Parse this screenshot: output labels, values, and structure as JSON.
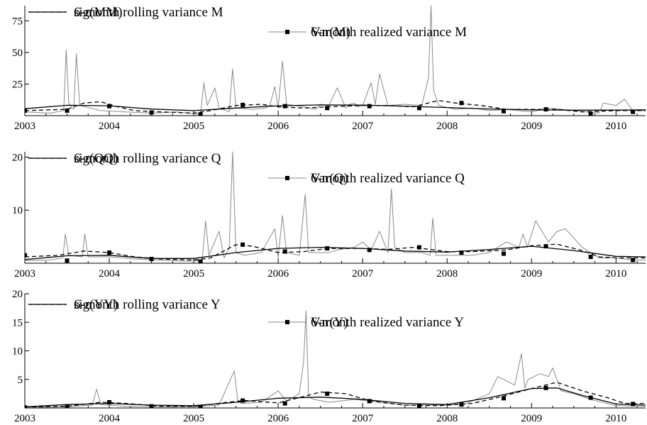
{
  "chart_data": [
    {
      "type": "line",
      "panel": "M",
      "xlim": [
        2003.0,
        2010.35
      ],
      "ylim": [
        0,
        87
      ],
      "xticks": [
        "2003",
        "2004",
        "2005",
        "2006",
        "2007",
        "2008",
        "2009",
        "2010"
      ],
      "yticks": [
        25,
        50,
        75
      ],
      "grid": false,
      "legend_position": "top",
      "series": [
        {
          "name": "sig(MM)",
          "style": "solid-black",
          "x": [
            2003.0,
            2003.5,
            2004.0,
            2004.5,
            2005.0,
            2005.5,
            2006.0,
            2006.5,
            2007.0,
            2007.5,
            2008.0,
            2008.5,
            2009.0,
            2009.5,
            2010.0,
            2010.35
          ],
          "y": [
            5.5,
            8.2,
            7.8,
            5.2,
            4.0,
            6.0,
            7.8,
            8.5,
            8.3,
            7.5,
            6.4,
            5.3,
            4.6,
            4.3,
            4.4,
            4.6
          ]
        },
        {
          "name": "Var(M)",
          "style": "thin-gray",
          "x": [
            2003.0,
            2003.3,
            2003.46,
            2003.49,
            2003.52,
            2003.58,
            2003.61,
            2003.65,
            2003.9,
            2004.2,
            2004.5,
            2004.8,
            2005.08,
            2005.12,
            2005.16,
            2005.25,
            2005.3,
            2005.42,
            2005.46,
            2005.5,
            2005.7,
            2005.85,
            2005.9,
            2005.96,
            2006.0,
            2006.05,
            2006.1,
            2006.3,
            2006.45,
            2006.5,
            2006.6,
            2006.7,
            2006.8,
            2006.85,
            2006.9,
            2006.95,
            2007.0,
            2007.1,
            2007.15,
            2007.2,
            2007.3,
            2007.5,
            2007.7,
            2007.78,
            2007.81,
            2007.84,
            2007.9,
            2008.1,
            2008.3,
            2008.5,
            2008.7,
            2009.0,
            2009.2,
            2009.5,
            2009.8,
            2009.85,
            2010.0,
            2010.1,
            2010.2,
            2010.35
          ],
          "y": [
            3,
            2,
            4,
            52,
            10,
            5,
            49,
            8,
            4,
            3,
            2,
            3,
            1,
            26,
            8,
            22,
            6,
            3,
            37,
            6,
            5,
            6,
            8,
            23,
            6,
            43,
            9,
            7,
            5,
            9,
            8,
            22,
            6,
            9,
            10,
            7,
            8,
            26,
            9,
            33,
            8,
            9,
            8,
            30,
            87,
            20,
            8,
            5,
            6,
            4,
            5,
            3,
            6,
            4,
            2,
            10,
            8,
            13,
            4,
            4
          ]
        },
        {
          "name": "6-month rolling variance M",
          "style": "dashed-black",
          "x": [
            2003.0,
            2003.5,
            2003.7,
            2003.9,
            2004.1,
            2004.3,
            2004.6,
            2005.0,
            2005.2,
            2005.5,
            2005.8,
            2006.0,
            2006.3,
            2006.6,
            2007.0,
            2007.3,
            2007.6,
            2007.9,
            2008.1,
            2008.4,
            2008.7,
            2009.0,
            2009.3,
            2009.6,
            2010.0,
            2010.35
          ],
          "y": [
            4,
            5,
            10,
            11,
            7,
            4,
            3,
            2,
            4,
            8,
            9,
            7,
            6,
            7,
            8,
            8,
            7,
            12,
            10,
            8,
            5,
            5,
            5,
            3,
            4,
            4
          ]
        },
        {
          "name": "6-month realized variance M",
          "style": "square-markers",
          "x": [
            2003.0,
            2003.5,
            2004.0,
            2004.5,
            2005.08,
            2005.58,
            2006.08,
            2006.58,
            2007.08,
            2007.67,
            2008.17,
            2008.67,
            2009.17,
            2009.7,
            2010.2
          ],
          "y": [
            4,
            4,
            7.5,
            2.5,
            1,
            8.5,
            7.5,
            6,
            7.5,
            6,
            10,
            3.5,
            5,
            1.5,
            3
          ]
        }
      ]
    },
    {
      "type": "line",
      "panel": "Q",
      "xlim": [
        2003.0,
        2010.35
      ],
      "ylim": [
        0,
        21
      ],
      "xticks": [
        "2003",
        "2004",
        "2005",
        "2006",
        "2007",
        "2008",
        "2009",
        "2010"
      ],
      "yticks": [
        10,
        20
      ],
      "grid": false,
      "legend_position": "top",
      "series": [
        {
          "name": "sig(QQ)",
          "style": "solid-black",
          "x": [
            2003.0,
            2003.5,
            2004.0,
            2004.5,
            2005.0,
            2005.5,
            2006.0,
            2006.5,
            2007.0,
            2007.5,
            2008.0,
            2008.5,
            2009.0,
            2009.5,
            2010.0,
            2010.35
          ],
          "y": [
            0.7,
            1.4,
            1.5,
            0.9,
            0.9,
            2.0,
            2.8,
            3.0,
            2.8,
            2.3,
            2.1,
            2.6,
            3.2,
            2.4,
            1.3,
            1.2
          ]
        },
        {
          "name": "Var(Q)",
          "style": "thin-gray",
          "x": [
            2003.0,
            2003.3,
            2003.45,
            2003.48,
            2003.52,
            2003.68,
            2003.71,
            2003.75,
            2004.0,
            2004.3,
            2004.6,
            2004.9,
            2005.1,
            2005.14,
            2005.18,
            2005.3,
            2005.36,
            2005.42,
            2005.46,
            2005.5,
            2005.6,
            2005.8,
            2005.96,
            2006.0,
            2006.05,
            2006.1,
            2006.25,
            2006.32,
            2006.36,
            2006.45,
            2006.6,
            2006.7,
            2006.9,
            2007.0,
            2007.1,
            2007.2,
            2007.3,
            2007.34,
            2007.38,
            2007.5,
            2007.7,
            2007.8,
            2007.83,
            2007.87,
            2008.0,
            2008.3,
            2008.5,
            2008.7,
            2008.85,
            2008.9,
            2008.95,
            2009.05,
            2009.2,
            2009.3,
            2009.4,
            2009.6,
            2009.8,
            2010.0,
            2010.2,
            2010.35
          ],
          "y": [
            0.5,
            0.6,
            1,
            5.5,
            1.5,
            1.2,
            5.5,
            1.2,
            1.2,
            0.8,
            0.6,
            0.4,
            0.5,
            8,
            1.5,
            6,
            1,
            3,
            21,
            2,
            1.5,
            2,
            6.5,
            1,
            9,
            2,
            1.5,
            13,
            2,
            2,
            2,
            2.5,
            3,
            4,
            2.5,
            6,
            2,
            14,
            3,
            2,
            2,
            1.5,
            8.5,
            1.5,
            1.5,
            1.5,
            2,
            4,
            3,
            5.5,
            3,
            8,
            4,
            6,
            6.5,
            3,
            1,
            1,
            0.6,
            0.6
          ]
        },
        {
          "name": "6-month rolling variance Q",
          "style": "dashed-black",
          "x": [
            2003.0,
            2003.4,
            2003.7,
            2004.0,
            2004.3,
            2004.6,
            2005.0,
            2005.2,
            2005.5,
            2005.7,
            2006.0,
            2006.3,
            2006.6,
            2007.0,
            2007.3,
            2007.6,
            2008.0,
            2008.3,
            2008.7,
            2009.0,
            2009.3,
            2009.6,
            2009.8,
            2010.0,
            2010.35
          ],
          "y": [
            1.2,
            1.5,
            2.3,
            2.0,
            1.2,
            0.8,
            0.6,
            1.0,
            3.5,
            3.2,
            2.0,
            2.2,
            2.8,
            2.8,
            2.6,
            3.0,
            2.2,
            2.2,
            2.5,
            3.3,
            3.6,
            2.4,
            1.2,
            1.0,
            1.0
          ]
        },
        {
          "name": "6-month realized variance Q",
          "style": "square-markers",
          "x": [
            2003.0,
            2003.5,
            2004.0,
            2004.5,
            2005.08,
            2005.58,
            2006.08,
            2006.58,
            2007.08,
            2007.67,
            2008.17,
            2008.67,
            2009.17,
            2009.7,
            2010.2
          ],
          "y": [
            1.5,
            0.5,
            2.0,
            0.8,
            0.3,
            3.5,
            2.2,
            2.8,
            2.5,
            3.0,
            2.0,
            1.8,
            3.2,
            1.2,
            0.6
          ]
        }
      ]
    },
    {
      "type": "line",
      "panel": "Y",
      "xlim": [
        2003.0,
        2010.35
      ],
      "ylim": [
        0,
        20
      ],
      "xticks": [
        "2003",
        "2004",
        "2005",
        "2006",
        "2007",
        "2008",
        "2009",
        "2010"
      ],
      "yticks": [
        5,
        10,
        15,
        20
      ],
      "grid": false,
      "legend_position": "top",
      "series": [
        {
          "name": "sig(YY)",
          "style": "solid-black",
          "x": [
            2003.0,
            2003.5,
            2004.0,
            2004.5,
            2005.0,
            2005.5,
            2006.0,
            2006.5,
            2007.0,
            2007.5,
            2008.0,
            2008.5,
            2009.0,
            2009.3,
            2009.6,
            2010.0,
            2010.35
          ],
          "y": [
            0.2,
            0.6,
            0.8,
            0.5,
            0.4,
            1.0,
            1.7,
            1.9,
            1.5,
            0.8,
            0.6,
            1.8,
            3.4,
            3.5,
            2.2,
            0.7,
            0.5
          ]
        },
        {
          "name": "Var(Y)",
          "style": "thin-gray",
          "x": [
            2003.0,
            2003.5,
            2003.8,
            2003.85,
            2003.9,
            2004.2,
            2004.6,
            2005.0,
            2005.3,
            2005.48,
            2005.52,
            2005.56,
            2005.8,
            2006.0,
            2006.1,
            2006.25,
            2006.3,
            2006.33,
            2006.36,
            2006.42,
            2006.6,
            2006.9,
            2007.2,
            2007.5,
            2007.8,
            2008.2,
            2008.5,
            2008.6,
            2008.8,
            2008.88,
            2008.92,
            2008.96,
            2009.1,
            2009.2,
            2009.25,
            2009.35,
            2009.5,
            2009.7,
            2010.0,
            2010.35
          ],
          "y": [
            0.1,
            0.2,
            0.5,
            3.3,
            0.6,
            0.3,
            0.2,
            0.2,
            0.5,
            6.5,
            1.5,
            0.8,
            1,
            3,
            1.2,
            2.5,
            8,
            17,
            2,
            1.5,
            1,
            1.5,
            1,
            0.5,
            0.5,
            0.6,
            2.5,
            5.5,
            4,
            9.5,
            3.5,
            5,
            6,
            5.5,
            7,
            3,
            2.5,
            1.5,
            0.4,
            0.3
          ]
        },
        {
          "name": "6-month rolling variance Y",
          "style": "dashed-black",
          "x": [
            2003.0,
            2003.5,
            2003.9,
            2004.2,
            2004.6,
            2005.0,
            2005.4,
            2005.6,
            2006.0,
            2006.3,
            2006.5,
            2006.8,
            2007.1,
            2007.5,
            2007.9,
            2008.3,
            2008.7,
            2009.0,
            2009.3,
            2009.6,
            2009.9,
            2010.1,
            2010.35
          ],
          "y": [
            0.2,
            0.3,
            1.0,
            0.8,
            0.3,
            0.3,
            1.0,
            1.3,
            0.9,
            2.0,
            2.8,
            2.5,
            1.2,
            0.5,
            0.4,
            0.8,
            2.2,
            3.4,
            4.5,
            3.0,
            1.8,
            0.8,
            0.8
          ]
        },
        {
          "name": "6-month realized variance Y",
          "style": "square-markers",
          "x": [
            2003.0,
            2003.5,
            2004.0,
            2004.5,
            2005.08,
            2005.58,
            2006.08,
            2006.58,
            2007.08,
            2007.67,
            2008.17,
            2008.67,
            2009.17,
            2009.7,
            2010.2
          ],
          "y": [
            0.1,
            0.2,
            1.0,
            0.3,
            0.2,
            1.3,
            0.8,
            2.5,
            1.2,
            0.4,
            0.6,
            1.7,
            3.5,
            1.8,
            0.7
          ]
        }
      ]
    }
  ]
}
